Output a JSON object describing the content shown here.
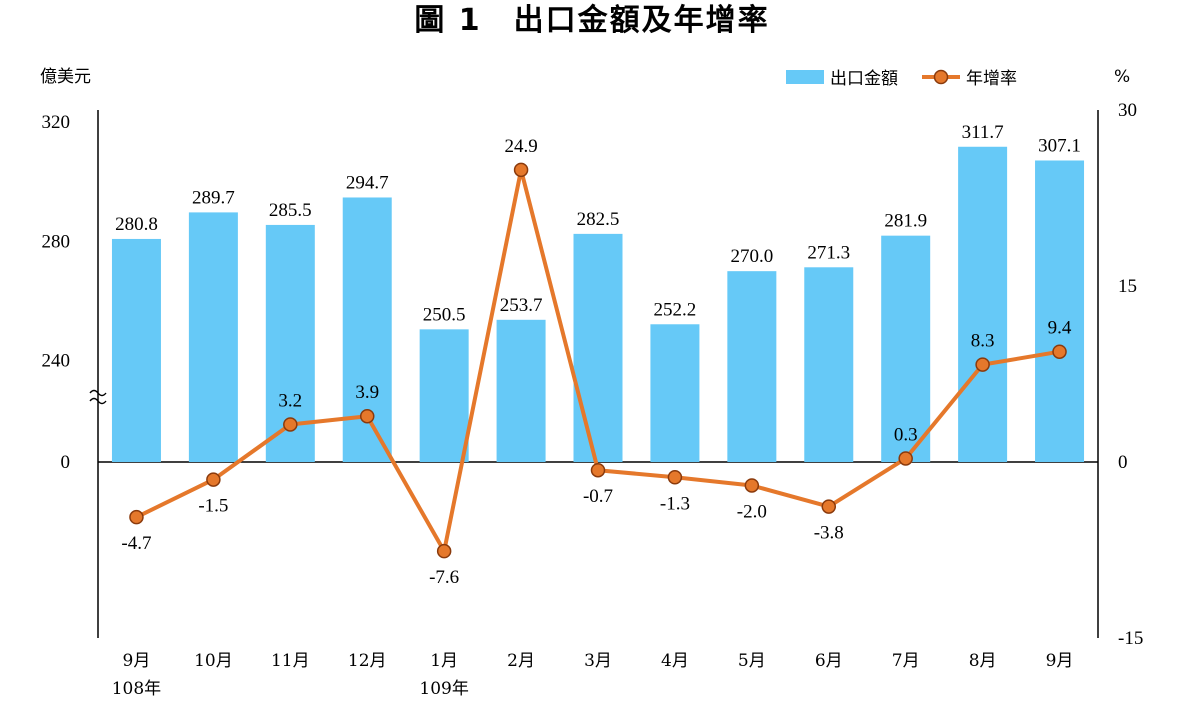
{
  "chart_data": {
    "type": "bar+line",
    "title": "圖 1　出口金額及年增率",
    "y_left_unit": "億美元",
    "y_right_unit": "%",
    "y_left_ticks": [
      "320",
      "280",
      "240",
      "0"
    ],
    "y_right_ticks": [
      "30",
      "15",
      "0",
      "-15"
    ],
    "y_left_segment_range": [
      200,
      320
    ],
    "y_right_range": [
      -15,
      30
    ],
    "axis_break": true,
    "categories": [
      "9月",
      "10月",
      "11月",
      "12月",
      "1月",
      "2月",
      "3月",
      "4月",
      "5月",
      "6月",
      "7月",
      "8月",
      "9月"
    ],
    "year_labels": [
      {
        "index": 0,
        "text": "108年"
      },
      {
        "index": 4,
        "text": "109年"
      }
    ],
    "legend_position": "top-right",
    "series": [
      {
        "name": "出口金額",
        "kind": "bar",
        "axis": "left",
        "color": "#66c9f7",
        "values": [
          280.8,
          289.7,
          285.5,
          294.7,
          250.5,
          253.7,
          282.5,
          252.2,
          270.0,
          271.3,
          281.9,
          311.7,
          307.1
        ],
        "labels": [
          "280.8",
          "289.7",
          "285.5",
          "294.7",
          "250.5",
          "253.7",
          "282.5",
          "252.2",
          "270.0",
          "271.3",
          "281.9",
          "311.7",
          "307.1"
        ]
      },
      {
        "name": "年增率",
        "kind": "line",
        "axis": "right",
        "color": "#e5782b",
        "values": [
          -4.7,
          -1.5,
          3.2,
          3.9,
          -7.6,
          24.9,
          -0.7,
          -1.3,
          -2.0,
          -3.8,
          0.3,
          8.3,
          9.4
        ],
        "labels": [
          "-4.7",
          "-1.5",
          "3.2",
          "3.9",
          "-7.6",
          "24.9",
          "-0.7",
          "-1.3",
          "-2.0",
          "-3.8",
          "0.3",
          "8.3",
          "9.4"
        ]
      }
    ]
  }
}
